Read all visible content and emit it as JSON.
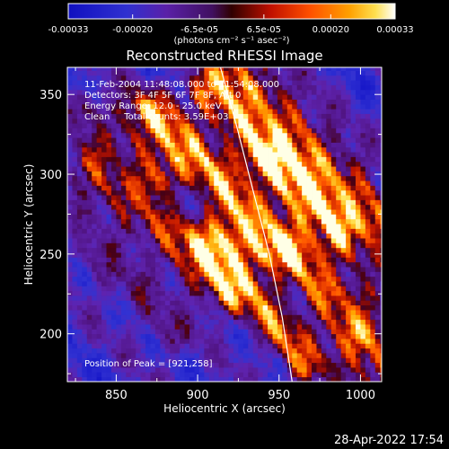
{
  "chart_data": {
    "type": "heatmap",
    "title": "Reconstructed RHESSI Image",
    "xlabel": "Heliocentric X (arcsec)",
    "ylabel": "Heliocentric Y (arcsec)",
    "xlim": [
      820,
      1013
    ],
    "ylim": [
      170,
      367
    ],
    "xticks": [
      850,
      900,
      950,
      1000
    ],
    "yticks": [
      200,
      250,
      300,
      350
    ],
    "colorbar": {
      "range": [
        -0.00033,
        0.00033
      ],
      "ticks": [
        "-0.00033",
        "-0.00020",
        "-6.5e-05",
        "6.5e-05",
        "0.00020",
        "0.00033"
      ],
      "unit_label": "(photons cm⁻² s⁻¹ asec⁻²)"
    },
    "annotations": [
      "11-Feb-2004 11:48:08.000 to 11:54:08.000",
      "Detectors: 3F 4F 5F 6F 7F 8F, Att 0",
      "Energy Range: 12.0 - 25.0 keV",
      "Clean     Total counts: 3.59E+03"
    ],
    "peak_label": "Position of Peak = [921,258]",
    "peak": [
      921,
      258
    ],
    "limb_curve": [
      [
        914,
        367
      ],
      [
        924,
        330
      ],
      [
        934,
        290
      ],
      [
        944,
        250
      ],
      [
        952,
        210
      ],
      [
        958,
        170
      ]
    ],
    "ridges": [
      {
        "a": [
          830,
          305
        ],
        "b": [
          915,
          225
        ],
        "w": 10,
        "amp": 0.7
      },
      {
        "a": [
          872,
          338
        ],
        "b": [
          945,
          255
        ],
        "w": 11,
        "amp": 0.95
      },
      {
        "a": [
          905,
          352
        ],
        "b": [
          985,
          265
        ],
        "w": 10,
        "amp": 0.9
      },
      {
        "a": [
          925,
          367
        ],
        "b": [
          1013,
          275
        ],
        "w": 10,
        "amp": 0.85
      },
      {
        "a": [
          945,
          310
        ],
        "b": [
          1013,
          230
        ],
        "w": 9,
        "amp": 0.6
      },
      {
        "a": [
          955,
          250
        ],
        "b": [
          1010,
          178
        ],
        "w": 10,
        "amp": 0.85
      },
      {
        "a": [
          905,
          260
        ],
        "b": [
          965,
          180
        ],
        "w": 10,
        "amp": 0.75
      },
      {
        "a": [
          835,
          345
        ],
        "b": [
          880,
          300
        ],
        "w": 8,
        "amp": 0.45
      },
      {
        "a": [
          830,
          250
        ],
        "b": [
          885,
          195
        ],
        "w": 8,
        "amp": 0.35
      }
    ],
    "blobs": [
      {
        "x": 921,
        "y": 258,
        "r": 10,
        "amp": 0.6
      },
      {
        "x": 938,
        "y": 312,
        "r": 9,
        "amp": 0.4
      },
      {
        "x": 1000,
        "y": 200,
        "r": 9,
        "amp": 0.4
      },
      {
        "x": 875,
        "y": 297,
        "r": 8,
        "amp": 0.4
      }
    ]
  },
  "footer": {
    "timestamp": "28-Apr-2022 17:54"
  }
}
